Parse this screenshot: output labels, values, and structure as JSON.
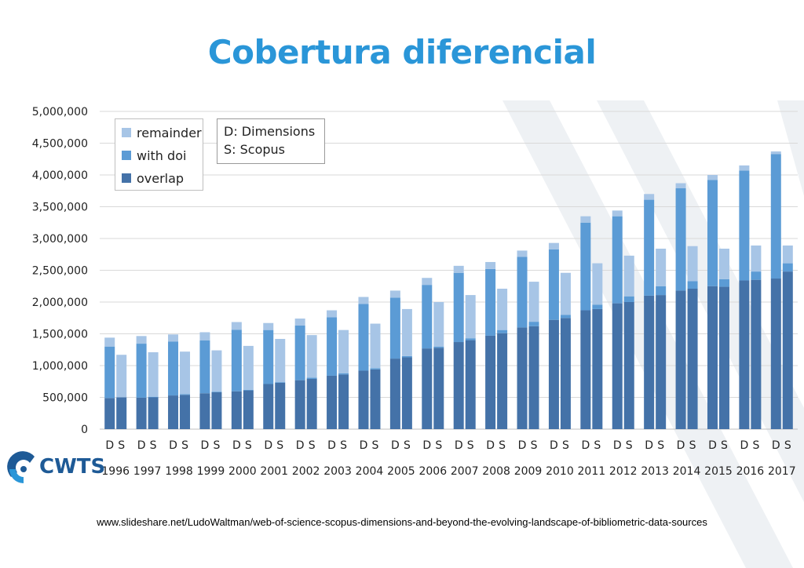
{
  "slide": {
    "title": "Cobertura diferencial",
    "source_url": "www.slideshare.net/LudoWaltman/web-of-science-scopus-dimensions-and-beyond-the-evolving-landscape-of-bibliometric-data-sources",
    "logo_text": "CWTS"
  },
  "colors": {
    "title": "#2a96d8",
    "remainder": "#a7c5e6",
    "with_doi": "#5b9bd5",
    "overlap": "#4472a8",
    "grid": "#d9d9d9",
    "watermark": "#eef1f4"
  },
  "chart_data": {
    "type": "bar",
    "stacked": true,
    "bar_labels": [
      "D",
      "S"
    ],
    "categories": [
      "1996",
      "1997",
      "1998",
      "1999",
      "2000",
      "2001",
      "2002",
      "2003",
      "2004",
      "2005",
      "2006",
      "2007",
      "2008",
      "2009",
      "2010",
      "2011",
      "2012",
      "2013",
      "2014",
      "2015",
      "2016",
      "2017"
    ],
    "ylim": [
      0,
      5000000
    ],
    "yticks": [
      "0",
      "500,000",
      "1,000,000",
      "1,500,000",
      "2,000,000",
      "2,500,000",
      "3,000,000",
      "3,500,000",
      "4,000,000",
      "4,500,000",
      "5,000,000"
    ],
    "ytick_values": [
      0,
      500000,
      1000000,
      1500000,
      2000000,
      2500000,
      3000000,
      3500000,
      4000000,
      4500000,
      5000000
    ],
    "grid": true,
    "legend": {
      "placement": "top-left",
      "entries": [
        {
          "key": "remainder",
          "label": "remainder"
        },
        {
          "key": "with_doi",
          "label": "with doi"
        },
        {
          "key": "overlap",
          "label": "overlap"
        }
      ]
    },
    "note_lines": [
      "D: Dimensions",
      "S: Scopus"
    ],
    "series": [
      {
        "name": "overlap",
        "D": [
          490000,
          495000,
          530000,
          565000,
          595000,
          710000,
          770000,
          840000,
          920000,
          1110000,
          1270000,
          1370000,
          1470000,
          1600000,
          1720000,
          1870000,
          1980000,
          2100000,
          2180000,
          2250000,
          2340000,
          2370000
        ],
        "S": [
          500000,
          500000,
          540000,
          580000,
          610000,
          730000,
          790000,
          860000,
          940000,
          1130000,
          1280000,
          1400000,
          1510000,
          1620000,
          1750000,
          1890000,
          2000000,
          2110000,
          2210000,
          2240000,
          2350000,
          2480000
        ]
      },
      {
        "name": "with doi",
        "D": [
          810000,
          850000,
          850000,
          830000,
          970000,
          850000,
          860000,
          920000,
          1050000,
          960000,
          1000000,
          1090000,
          1050000,
          1110000,
          1110000,
          1380000,
          1370000,
          1510000,
          1610000,
          1670000,
          1730000,
          1960000
        ],
        "S": [
          0,
          10000,
          10000,
          10000,
          10000,
          10000,
          20000,
          20000,
          20000,
          20000,
          20000,
          30000,
          50000,
          70000,
          50000,
          70000,
          90000,
          140000,
          120000,
          120000,
          130000,
          130000
        ]
      },
      {
        "name": "remainder",
        "D": [
          140000,
          120000,
          110000,
          130000,
          120000,
          110000,
          110000,
          110000,
          110000,
          110000,
          110000,
          110000,
          110000,
          100000,
          100000,
          100000,
          90000,
          90000,
          80000,
          80000,
          80000,
          40000
        ],
        "S": [
          670000,
          700000,
          670000,
          650000,
          690000,
          680000,
          670000,
          680000,
          700000,
          740000,
          700000,
          680000,
          650000,
          630000,
          660000,
          650000,
          640000,
          590000,
          550000,
          480000,
          410000,
          280000
        ]
      }
    ]
  }
}
